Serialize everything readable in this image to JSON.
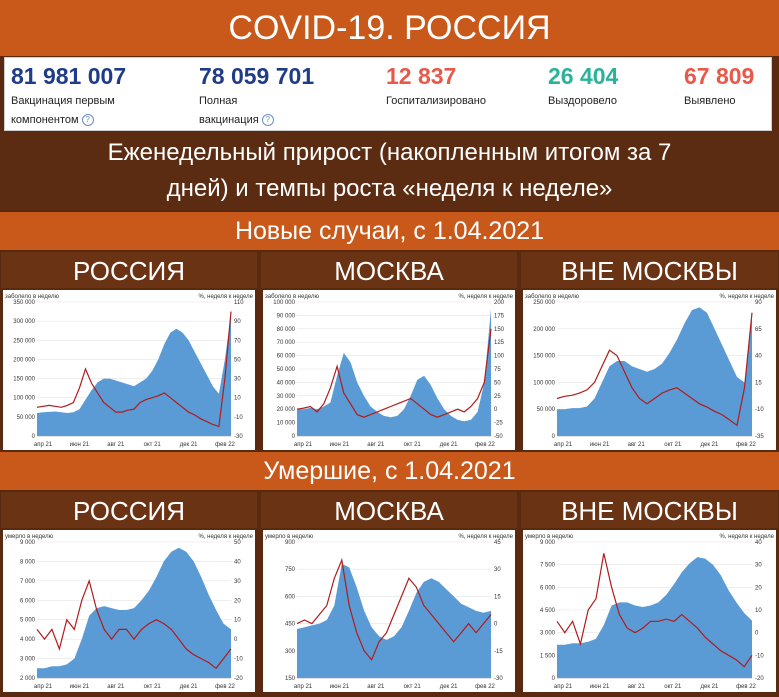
{
  "title": "COVID-19. РОССИЯ",
  "stats": [
    {
      "value": "81 981 007",
      "label_line1": "Вакцинация первым",
      "label_line2": "компонентом",
      "info": "?",
      "color": "#1f3c88"
    },
    {
      "value": "78 059 701",
      "label_line1": "Полная",
      "label_line2": "вакцинация",
      "info": "?",
      "color": "#1f3c88"
    },
    {
      "value": "12 837",
      "label_line1": "Госпитализировано",
      "label_line2": "",
      "info": "",
      "color": "#e8594a"
    },
    {
      "value": "26 404",
      "label_line1": "Выздоровело",
      "label_line2": "",
      "info": "",
      "color": "#2bb39a"
    },
    {
      "value": "67 809",
      "label_line1": "Выявлено",
      "label_line2": "",
      "info": "",
      "color": "#e8594a"
    }
  ],
  "subtitle_line1": "Еженедельный прирост (накопленным итогом за 7",
  "subtitle_line2": "дней) и темпы роста «неделя к неделе»",
  "section1": "Новые случаи, с 1.04.2021",
  "section2": "Умершие, с 1.04.2021",
  "columns": [
    "РОССИЯ",
    "МОСКВА",
    "ВНЕ МОСКВЫ"
  ],
  "colors": {
    "area": "#5b9bd5",
    "line": "#b01c1c"
  },
  "chart_data": [
    {
      "type": "area",
      "section": "Новые случаи, с 1.04.2021",
      "region": "РОССИЯ",
      "ylabel": "заболело в неделю",
      "y2label": "%, неделя к неделе",
      "yticks": [
        "0",
        "50 000",
        "100 000",
        "150 000",
        "200 000",
        "250 000",
        "300 000",
        "350 000"
      ],
      "ylim": [
        0,
        350000
      ],
      "y2ticks": [
        "-30",
        "-10",
        "10",
        "30",
        "50",
        "70",
        "90",
        "110"
      ],
      "y2lim": [
        -30,
        110
      ],
      "xticks": [
        "апр 21",
        "июн 21",
        "авг 21",
        "окт 21",
        "дек 21",
        "фев 22"
      ],
      "series": [
        {
          "name": "заболело в неделю",
          "axis": "left",
          "values": [
            60000,
            62000,
            63000,
            64000,
            62000,
            60000,
            62000,
            70000,
            95000,
            120000,
            140000,
            150000,
            150000,
            145000,
            140000,
            135000,
            130000,
            140000,
            150000,
            170000,
            200000,
            240000,
            270000,
            280000,
            270000,
            250000,
            220000,
            190000,
            160000,
            130000,
            110000,
            200000,
            320000
          ]
        },
        {
          "name": "%, неделя к неделе",
          "axis": "right",
          "values": [
            0,
            1,
            2,
            1,
            0,
            2,
            5,
            20,
            40,
            25,
            15,
            5,
            0,
            -5,
            -5,
            -3,
            -2,
            5,
            8,
            10,
            12,
            15,
            10,
            5,
            0,
            -5,
            -8,
            -12,
            -15,
            -18,
            -20,
            30,
            100
          ]
        }
      ]
    },
    {
      "type": "area",
      "section": "Новые случаи, с 1.04.2021",
      "region": "МОСКВА",
      "ylabel": "заболело в неделю",
      "y2label": "%, неделя к неделе",
      "yticks": [
        "0",
        "10 000",
        "20 000",
        "30 000",
        "40 000",
        "50 000",
        "60 000",
        "70 000",
        "80 000",
        "90 000",
        "100 000"
      ],
      "ylim": [
        0,
        100000
      ],
      "y2ticks": [
        "-50",
        "-25",
        "0",
        "25",
        "50",
        "75",
        "100",
        "125",
        "150",
        "175",
        "200"
      ],
      "y2lim": [
        -50,
        200
      ],
      "xticks": [
        "апр 21",
        "июн 21",
        "авг 21",
        "окт 21",
        "дек 21",
        "фев 22"
      ],
      "series": [
        {
          "name": "заболело в неделю",
          "axis": "left",
          "values": [
            20000,
            20000,
            21000,
            20000,
            22000,
            25000,
            45000,
            62000,
            55000,
            40000,
            30000,
            22000,
            18000,
            15000,
            14000,
            15000,
            20000,
            30000,
            42000,
            45000,
            38000,
            28000,
            20000,
            15000,
            12000,
            11000,
            12000,
            18000,
            40000,
            95000
          ]
        },
        {
          "name": "%, неделя к неделе",
          "axis": "right",
          "values": [
            0,
            2,
            5,
            -5,
            10,
            40,
            80,
            30,
            10,
            -10,
            -15,
            -10,
            -5,
            0,
            5,
            10,
            15,
            20,
            10,
            0,
            -10,
            -15,
            -10,
            -5,
            0,
            -5,
            5,
            20,
            50,
            150
          ]
        }
      ]
    },
    {
      "type": "area",
      "section": "Новые случаи, с 1.04.2021",
      "region": "ВНЕ МОСКВЫ",
      "ylabel": "заболело в неделю",
      "y2label": "%, неделя к неделе",
      "yticks": [
        "0",
        "50 000",
        "100 000",
        "150 000",
        "200 000",
        "250 000"
      ],
      "ylim": [
        0,
        250000
      ],
      "y2ticks": [
        "-35",
        "-10",
        "15",
        "40",
        "65",
        "90"
      ],
      "y2lim": [
        -35,
        90
      ],
      "xticks": [
        "апр 21",
        "июн 21",
        "авг 21",
        "окт 21",
        "дек 21",
        "фев 22"
      ],
      "series": [
        {
          "name": "заболело в неделю",
          "axis": "left",
          "values": [
            50000,
            50000,
            52000,
            52000,
            55000,
            70000,
            100000,
            130000,
            140000,
            140000,
            130000,
            125000,
            120000,
            125000,
            135000,
            155000,
            180000,
            210000,
            235000,
            240000,
            230000,
            200000,
            170000,
            140000,
            110000,
            100000,
            230000
          ]
        },
        {
          "name": "%, неделя к неделе",
          "axis": "right",
          "values": [
            0,
            2,
            3,
            5,
            8,
            15,
            30,
            45,
            40,
            25,
            10,
            0,
            -5,
            0,
            5,
            8,
            10,
            5,
            0,
            -5,
            -8,
            -12,
            -15,
            -20,
            -25,
            10,
            80
          ]
        }
      ]
    },
    {
      "type": "area",
      "section": "Умершие, с 1.04.2021",
      "region": "РОССИЯ",
      "ylabel": "умерло в неделю",
      "y2label": "%, неделя к неделе",
      "yticks": [
        "2 000",
        "3 000",
        "4 000",
        "5 000",
        "6 000",
        "7 000",
        "8 000",
        "9 000"
      ],
      "ylim": [
        2000,
        9000
      ],
      "y2ticks": [
        "-20",
        "-10",
        "0",
        "10",
        "20",
        "30",
        "40",
        "50"
      ],
      "y2lim": [
        -20,
        50
      ],
      "xticks": [
        "апр 21",
        "июн 21",
        "авг 21",
        "окт 21",
        "дек 21",
        "фев 22"
      ],
      "series": [
        {
          "name": "умерло в неделю",
          "axis": "left",
          "values": [
            2500,
            2500,
            2600,
            2600,
            2700,
            3000,
            4000,
            5200,
            5600,
            5700,
            5600,
            5500,
            5500,
            5600,
            6000,
            6500,
            7200,
            8000,
            8500,
            8700,
            8500,
            8000,
            7200,
            6300,
            5500,
            4800,
            4500
          ]
        },
        {
          "name": "%, неделя к неделе",
          "axis": "right",
          "values": [
            5,
            0,
            5,
            -5,
            10,
            5,
            20,
            30,
            15,
            5,
            0,
            5,
            5,
            0,
            5,
            8,
            10,
            8,
            5,
            0,
            -5,
            -8,
            -10,
            -12,
            -15,
            -10,
            -5
          ]
        }
      ]
    },
    {
      "type": "area",
      "section": "Умершие, с 1.04.2021",
      "region": "МОСКВА",
      "ylabel": "умерло в неделю",
      "y2label": "%, неделя к неделе",
      "yticks": [
        "150",
        "300",
        "450",
        "600",
        "750",
        "900"
      ],
      "ylim": [
        150,
        900
      ],
      "y2ticks": [
        "-30",
        "-15",
        "0",
        "15",
        "30",
        "45"
      ],
      "y2lim": [
        -30,
        45
      ],
      "xticks": [
        "апр 21",
        "июн 21",
        "авг 21",
        "окт 21",
        "дек 21",
        "фев 22"
      ],
      "series": [
        {
          "name": "умерло в неделю",
          "axis": "left",
          "values": [
            420,
            430,
            440,
            450,
            470,
            550,
            780,
            760,
            650,
            520,
            430,
            380,
            360,
            380,
            430,
            520,
            620,
            680,
            700,
            680,
            640,
            600,
            560,
            540,
            520,
            510,
            520
          ]
        },
        {
          "name": "%, неделя к неделе",
          "axis": "right",
          "values": [
            0,
            2,
            0,
            5,
            10,
            25,
            35,
            10,
            -5,
            -15,
            -20,
            -10,
            -5,
            5,
            15,
            25,
            20,
            10,
            5,
            0,
            -5,
            -10,
            -5,
            0,
            -5,
            0,
            5
          ]
        }
      ]
    },
    {
      "type": "area",
      "section": "Умершие, с 1.04.2021",
      "region": "ВНЕ МОСКВЫ",
      "ylabel": "умерло в неделю",
      "y2label": "%, неделя к неделе",
      "yticks": [
        "0",
        "1 500",
        "3 000",
        "4 500",
        "6 000",
        "7 500",
        "9 000"
      ],
      "ylim": [
        0,
        9000
      ],
      "y2ticks": [
        "-20",
        "-10",
        "0",
        "10",
        "20",
        "30",
        "40"
      ],
      "y2lim": [
        -20,
        40
      ],
      "xticks": [
        "апр 21",
        "июн 21",
        "авг 21",
        "окт 21",
        "дек 21",
        "фев 22"
      ],
      "series": [
        {
          "name": "умерло в неделю",
          "axis": "left",
          "values": [
            2200,
            2200,
            2300,
            2300,
            2400,
            2600,
            3500,
            4800,
            5000,
            5000,
            4800,
            4700,
            4800,
            5000,
            5500,
            6200,
            7000,
            7600,
            8000,
            7900,
            7500,
            6800,
            5800,
            5000,
            4300,
            3800
          ]
        },
        {
          "name": "%, неделя к неделе",
          "axis": "right",
          "values": [
            5,
            0,
            5,
            -5,
            10,
            15,
            35,
            20,
            8,
            2,
            0,
            2,
            5,
            5,
            6,
            5,
            8,
            5,
            2,
            -2,
            -5,
            -8,
            -10,
            -12,
            -15,
            -10
          ]
        }
      ]
    }
  ]
}
